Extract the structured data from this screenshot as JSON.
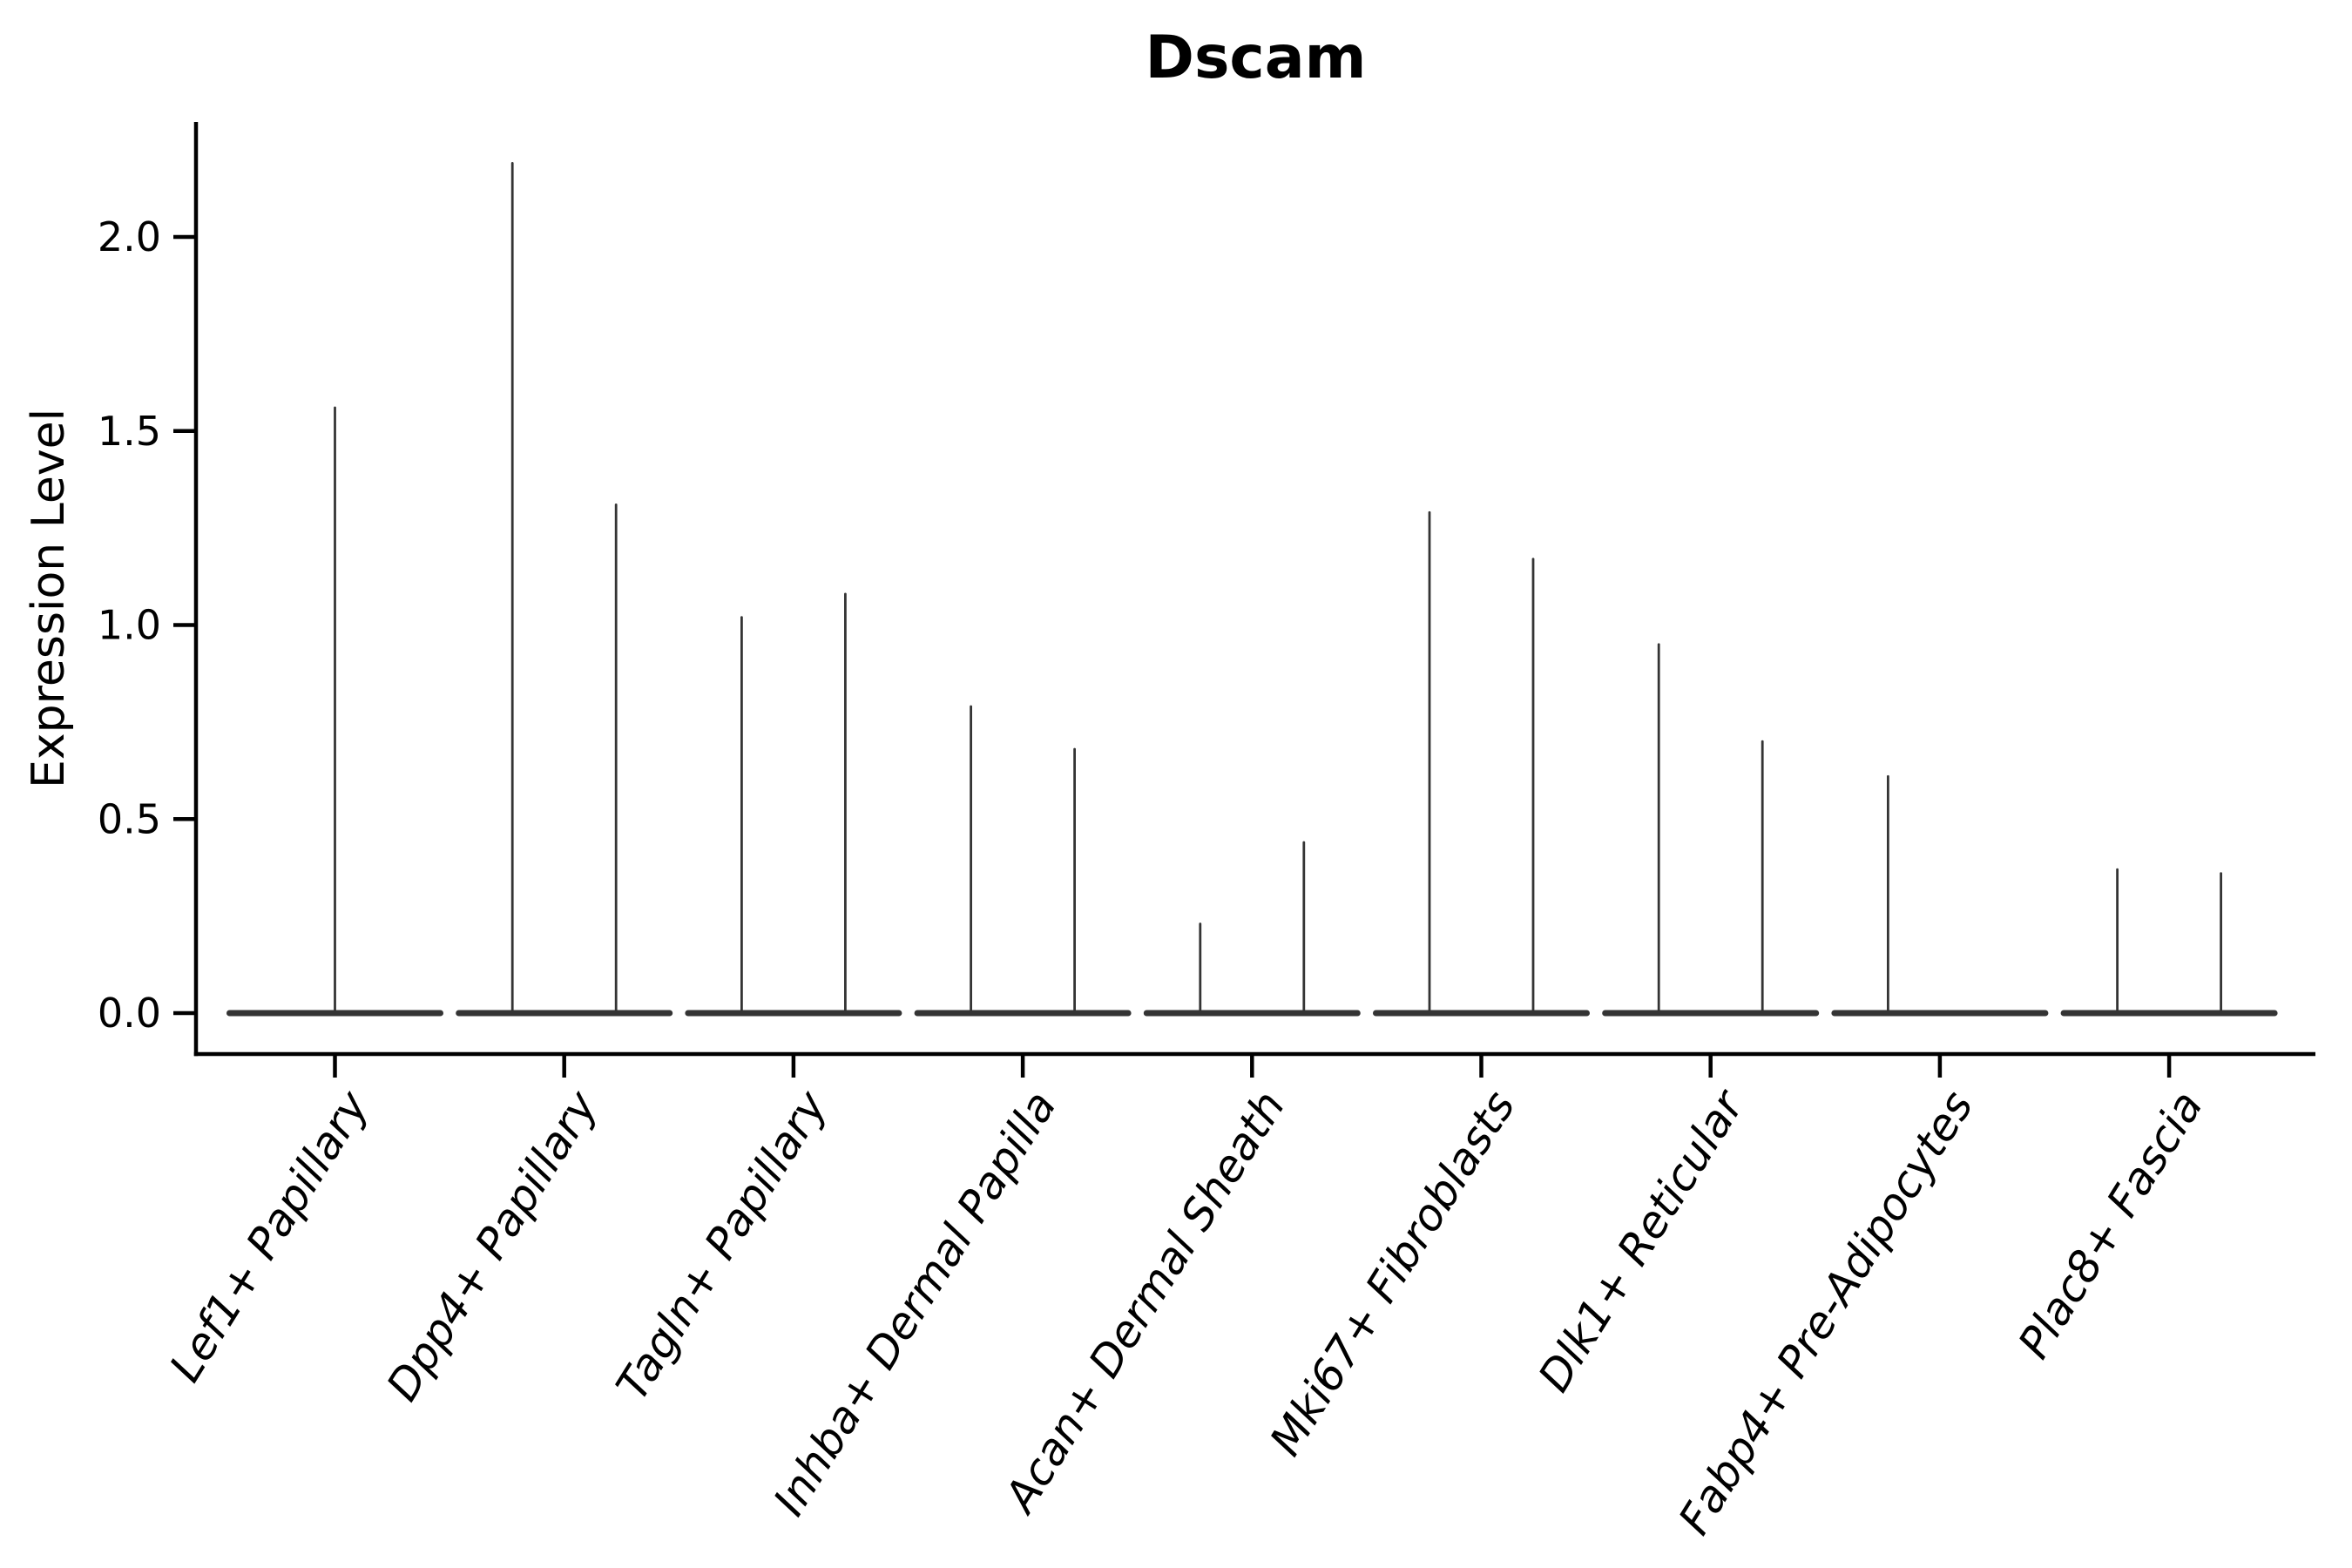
{
  "chart_data": {
    "type": "violin",
    "title": "Dscam",
    "ylabel": "Expression Level",
    "xlabel": "",
    "yticks": [
      "0.0",
      "0.5",
      "1.0",
      "1.5",
      "2.0"
    ],
    "ytick_values": [
      0.0,
      0.5,
      1.0,
      1.5,
      2.0
    ],
    "ylim": [
      -0.105,
      2.3
    ],
    "grid": false,
    "legend": false,
    "categories": [
      "Lef1+ Papillary",
      "Dpp4+ Papillary",
      "Tagln+ Papillary",
      "Inhba+ Dermal Papilla",
      "Acan+ Dermal Sheath",
      "Mki67+ Fibroblasts",
      "Dlk1+ Reticular",
      "Fabp4+ Pre-Adipocytes",
      "Plac8+ Fascia"
    ],
    "baseline_expression": 0.0,
    "violins": [
      {
        "category": "Lef1+ Papillary",
        "tails": [
          {
            "side": "center",
            "max_expression": 1.56
          }
        ]
      },
      {
        "category": "Dpp4+ Papillary",
        "tails": [
          {
            "side": "left",
            "max_expression": 2.19
          },
          {
            "side": "right",
            "max_expression": 1.31
          }
        ]
      },
      {
        "category": "Tagln+ Papillary",
        "tails": [
          {
            "side": "left",
            "max_expression": 1.02
          },
          {
            "side": "right",
            "max_expression": 1.08
          }
        ]
      },
      {
        "category": "Inhba+ Dermal Papilla",
        "tails": [
          {
            "side": "left",
            "max_expression": 0.79
          },
          {
            "side": "right",
            "max_expression": 0.68
          }
        ]
      },
      {
        "category": "Acan+ Dermal Sheath",
        "tails": [
          {
            "side": "left",
            "max_expression": 0.23
          },
          {
            "side": "right",
            "max_expression": 0.44
          }
        ]
      },
      {
        "category": "Mki67+ Fibroblasts",
        "tails": [
          {
            "side": "left",
            "max_expression": 1.29
          },
          {
            "side": "right",
            "max_expression": 1.17
          }
        ]
      },
      {
        "category": "Dlk1+ Reticular",
        "tails": [
          {
            "side": "left",
            "max_expression": 0.95
          },
          {
            "side": "right",
            "max_expression": 0.7
          }
        ]
      },
      {
        "category": "Fabp4+ Pre-Adipocytes",
        "tails": [
          {
            "side": "left",
            "max_expression": 0.61
          }
        ]
      },
      {
        "category": "Plac8+ Fascia",
        "tails": [
          {
            "side": "left",
            "max_expression": 0.37
          },
          {
            "side": "right",
            "max_expression": 0.36
          }
        ]
      }
    ],
    "colors": {
      "violin_line": "#343434",
      "spine": "#000000",
      "text": "#000000",
      "background": "#ffffff"
    }
  }
}
